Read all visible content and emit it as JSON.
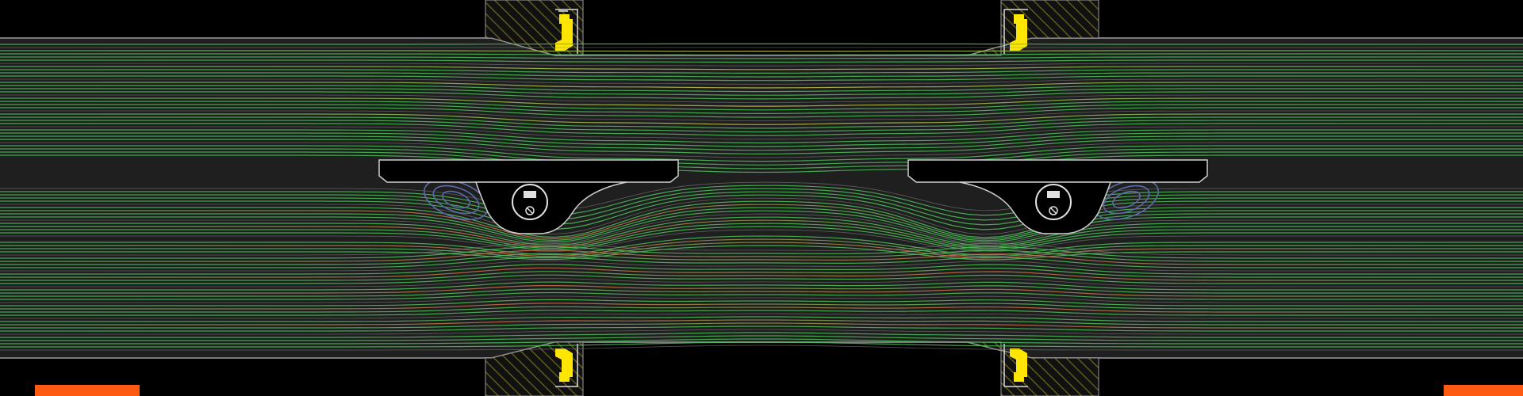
{
  "colors": {
    "background": "#000000",
    "channel": "#1f1f1f",
    "channel_edge": "#7a7a7a",
    "wall_outline": "#9a9a9a",
    "hatch": "#5f5a1a",
    "hatch_bg": "#111111",
    "seal": "#ffe600",
    "marker": "#ff5a12",
    "stream_green": "#4fbf5a",
    "stream_gray": "#8a8a8a",
    "stream_yellow": "#c8c24a",
    "stream_red": "#d26a4a",
    "stream_blue": "#5a6aa8"
  },
  "icons": {
    "left_valve_symbol": "valve-circle-icon",
    "right_valve_symbol": "valve-circle-icon",
    "seal_symbol": "seal-clip-icon"
  },
  "markers": [
    {
      "name": "orange-marker-left"
    },
    {
      "name": "orange-marker-right"
    }
  ]
}
